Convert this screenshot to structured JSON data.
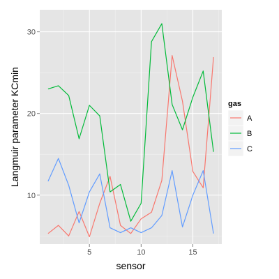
{
  "chart_data": {
    "type": "line",
    "title": "",
    "xlabel": "sensor",
    "ylabel": "Langmuir parameter KCmin",
    "xlim": [
      0.2,
      17.8
    ],
    "ylim": [
      4.0,
      32.7
    ],
    "x_ticks": [
      5,
      10,
      15
    ],
    "y_ticks": [
      10,
      20,
      30
    ],
    "grid": true,
    "legend": {
      "title": "gas",
      "position": "right"
    },
    "x": [
      1,
      2,
      3,
      4,
      5,
      6,
      7,
      8,
      9,
      10,
      11,
      12,
      13,
      14,
      15,
      16,
      17
    ],
    "series": [
      {
        "name": "A",
        "color": "#F8766D",
        "values": [
          5.3,
          6.3,
          5.0,
          8.0,
          4.9,
          9.0,
          12.3,
          6.3,
          5.3,
          7.1,
          7.9,
          11.8,
          27.1,
          21.5,
          12.9,
          10.9,
          26.9
        ]
      },
      {
        "name": "B",
        "color": "#00BA38",
        "values": [
          23.0,
          23.4,
          22.2,
          16.9,
          21.0,
          19.7,
          10.4,
          11.3,
          6.8,
          9.0,
          28.8,
          31.0,
          21.1,
          18.0,
          22.0,
          25.2,
          15.3
        ]
      },
      {
        "name": "C",
        "color": "#619CFF",
        "values": [
          11.7,
          14.5,
          11.2,
          6.6,
          10.4,
          12.6,
          6.0,
          5.4,
          6.0,
          5.4,
          6.0,
          7.5,
          13.0,
          6.1,
          10.0,
          13.0,
          5.3
        ]
      }
    ]
  }
}
